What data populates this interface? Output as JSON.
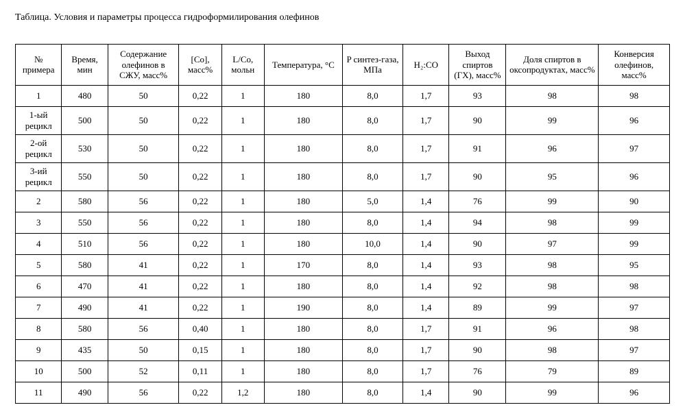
{
  "caption": "Таблица. Условия и параметры процесса гидроформилирования олефинов",
  "table": {
    "columns": [
      "№ примера",
      "Время, мин",
      "Содержание олефинов в СЖУ, масс%",
      "[Co], масс%",
      "L/Co, мольн",
      "Температура, °C",
      "P синтез-газа, МПа",
      "H₂:CO",
      "Выход спиртов (ГХ), масс%",
      "Доля спиртов в оксопродуктах, масс%",
      "Конверсия олефинов, масс%"
    ],
    "rows": [
      [
        "1",
        "480",
        "50",
        "0,22",
        "1",
        "180",
        "8,0",
        "1,7",
        "93",
        "98",
        "98"
      ],
      [
        "1-ый рецикл",
        "500",
        "50",
        "0,22",
        "1",
        "180",
        "8,0",
        "1,7",
        "90",
        "99",
        "96"
      ],
      [
        "2-ой рецикл",
        "530",
        "50",
        "0,22",
        "1",
        "180",
        "8,0",
        "1,7",
        "91",
        "96",
        "97"
      ],
      [
        "3-ий рецикл",
        "550",
        "50",
        "0,22",
        "1",
        "180",
        "8,0",
        "1,7",
        "90",
        "95",
        "96"
      ],
      [
        "2",
        "580",
        "56",
        "0,22",
        "1",
        "180",
        "5,0",
        "1,4",
        "76",
        "99",
        "90"
      ],
      [
        "3",
        "550",
        "56",
        "0,22",
        "1",
        "180",
        "8,0",
        "1,4",
        "94",
        "98",
        "99"
      ],
      [
        "4",
        "510",
        "56",
        "0,22",
        "1",
        "180",
        "10,0",
        "1,4",
        "90",
        "97",
        "99"
      ],
      [
        "5",
        "580",
        "41",
        "0,22",
        "1",
        "170",
        "8,0",
        "1,4",
        "93",
        "98",
        "95"
      ],
      [
        "6",
        "470",
        "41",
        "0,22",
        "1",
        "180",
        "8,0",
        "1,4",
        "92",
        "98",
        "98"
      ],
      [
        "7",
        "490",
        "41",
        "0,22",
        "1",
        "190",
        "8,0",
        "1,4",
        "89",
        "99",
        "97"
      ],
      [
        "8",
        "580",
        "56",
        "0,40",
        "1",
        "180",
        "8,0",
        "1,7",
        "91",
        "96",
        "98"
      ],
      [
        "9",
        "435",
        "50",
        "0,15",
        "1",
        "180",
        "8,0",
        "1,7",
        "90",
        "98",
        "97"
      ],
      [
        "10",
        "500",
        "52",
        "0,11",
        "1",
        "180",
        "8,0",
        "1,7",
        "76",
        "79",
        "89"
      ],
      [
        "11",
        "490",
        "56",
        "0,22",
        "1,2",
        "180",
        "8,0",
        "1,4",
        "90",
        "99",
        "96"
      ]
    ]
  }
}
